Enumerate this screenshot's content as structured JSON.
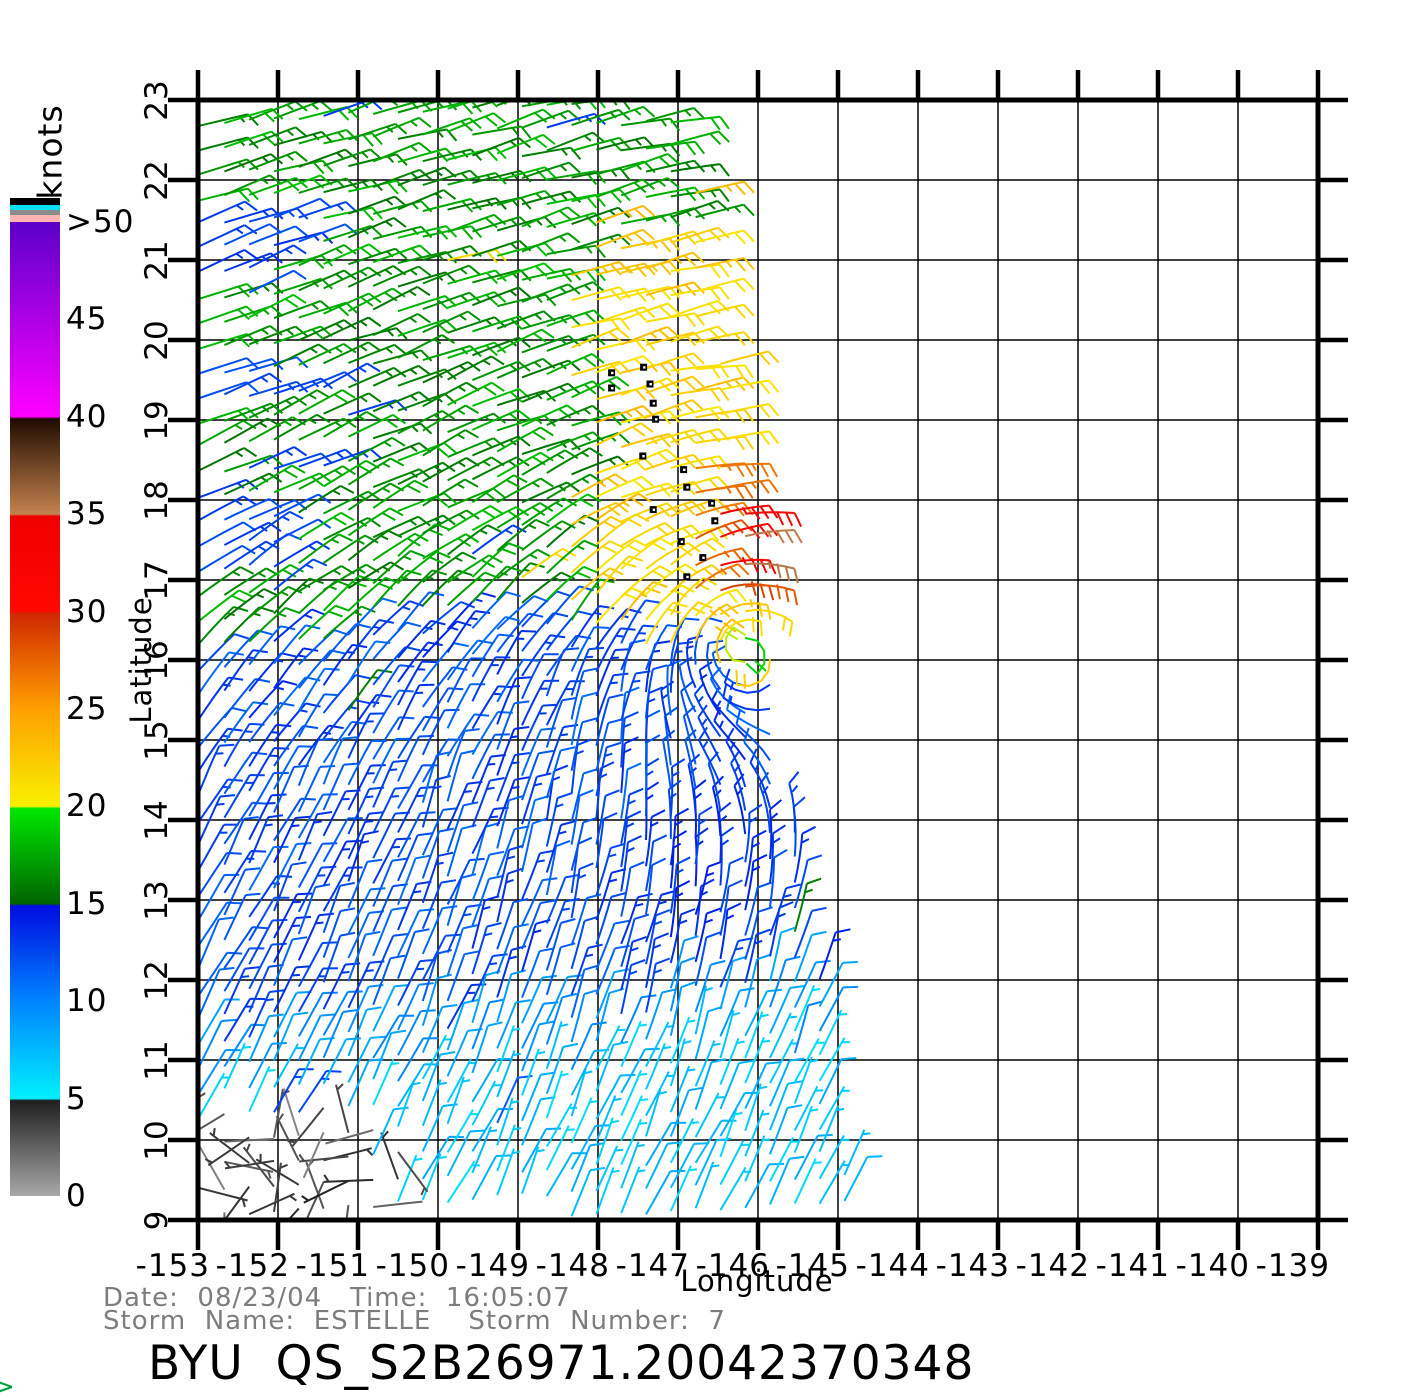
{
  "annotations": {
    "date_line": "Date:  08/23/04   Time:  16:05:07",
    "storm_line": "Storm  Name:  ESTELLE    Storm  Number:  7",
    "title": "BYU  QS_S2B26971.20042370348",
    "corner_glyph": ">"
  },
  "colorbar": {
    "title": "knots",
    "stops": [
      [
        0,
        "#a8a8a8"
      ],
      [
        4.9,
        "#1f1f1f"
      ],
      [
        5,
        "#00f0ff"
      ],
      [
        10,
        "#0084ff"
      ],
      [
        14.9,
        "#000ce0"
      ],
      [
        15,
        "#006400"
      ],
      [
        19.9,
        "#00e800"
      ],
      [
        20,
        "#f8f000"
      ],
      [
        25,
        "#ffa000"
      ],
      [
        29.9,
        "#d02800"
      ],
      [
        30,
        "#ff0800"
      ],
      [
        34.9,
        "#f00000"
      ],
      [
        35,
        "#c4824e"
      ],
      [
        39.9,
        "#200c00"
      ],
      [
        40,
        "#ff00ff"
      ],
      [
        50,
        "#5c00c8"
      ]
    ],
    "top_strips": [
      {
        "color": "#ffb4b4",
        "h": 7
      },
      {
        "color": "#8c8c8c",
        "h": 5
      },
      {
        "color": "#00e0f0",
        "h": 5
      },
      {
        "color": "#000000",
        "h": 7
      }
    ],
    "labels": [
      {
        "v": 0,
        "t": "0"
      },
      {
        "v": 5,
        "t": "5"
      },
      {
        "v": 10,
        "t": "10"
      },
      {
        "v": 15,
        "t": "15"
      },
      {
        "v": 20,
        "t": "20"
      },
      {
        "v": 25,
        "t": "25"
      },
      {
        "v": 30,
        "t": "30"
      },
      {
        "v": 35,
        "t": "35"
      },
      {
        "v": 40,
        "t": "40"
      },
      {
        "v": 45,
        "t": "45"
      },
      {
        "v": 50,
        "t": ">50"
      }
    ],
    "vmin": 0,
    "vmax": 50
  },
  "plot": {
    "xlabel": "Longitude",
    "ylabel": "Latitude",
    "lon_min": -153,
    "lon_max": -139,
    "lat_min": 9,
    "lat_max": 23,
    "x_tick_labels": [
      "-153",
      "-152",
      "-151",
      "-150",
      "-149",
      "-148",
      "-147",
      "-146",
      "-145",
      "-144",
      "-143",
      "-142",
      "-141",
      "-140",
      "-139"
    ],
    "y_tick_labels": [
      "23",
      "22",
      "21",
      "20",
      "19",
      "18",
      "17",
      "16",
      "15",
      "14",
      "13",
      "12",
      "11",
      "10",
      "9"
    ],
    "grid_color": "#000000",
    "frame_color": "#000000"
  },
  "chart_data": {
    "type": "wind_barb_map",
    "title": "BYU  QS_S2B26971.20042370348",
    "units": "knots",
    "xlabel": "Longitude",
    "ylabel": "Latitude",
    "xlim": [
      -153,
      -139
    ],
    "ylim": [
      9,
      23
    ],
    "grid": true,
    "colorbar_range_knots": [
      0,
      50
    ],
    "storm": {
      "name": "ESTELLE",
      "number": 7,
      "date": "08/23/04",
      "time": "16:05:07",
      "center_lon": -146.2,
      "center_lat": 16.2
    },
    "model": {
      "center": [
        -146.2,
        16.2
      ],
      "grid_step_deg": 0.31,
      "staff_len_deg": 0.62,
      "row_tilt_deg_per_deg": 0.06,
      "swath_edge_lon_at_lat9": -144.75,
      "swath_edge_slope_deg_per_deg": 0.1557,
      "vortex_gain": 1.6,
      "vortex_rmin": 0.45,
      "vortex_wmax": 2.2,
      "trades_from_south": [
        0.62,
        0.78
      ],
      "trades_from_north": [
        0.97,
        0.24
      ],
      "trades_lat_lo": 14.5,
      "trades_lat_span": 3.5,
      "green_blue_boundary": {
        "base": 16.35,
        "slope": 0.05,
        "dip_amp": 0.75,
        "dip_width": 1.2
      },
      "yellow_boundary_lon": -148.35,
      "yellow_top_lat": 21.4,
      "cyan_boundary": {
        "base": 10.4,
        "slope": 0.125
      },
      "gray_zone": {
        "lon_max": -150.62,
        "lat_max": 10.22
      },
      "speeds_knots": {
        "gray_calm": [
          1,
          4.8
        ],
        "cyan": [
          5.8,
          8.4
        ],
        "transition": [
          8,
          10
        ],
        "blue": [
          10.8,
          13.8
        ],
        "blue_east": [
          12,
          14.4
        ],
        "green": [
          15.5,
          18.5
        ],
        "yellow": [
          20.5,
          23.5
        ],
        "orange": [
          26,
          29
        ],
        "brown_core": [
          31,
          36
        ],
        "eye": [
          19,
          23
        ],
        "blue_patch": [
          12,
          13.5
        ]
      },
      "blue_patches": [
        [
          -153,
          -151.5,
          21.05,
          21.55
        ],
        [
          -153,
          -152.05,
          20.55,
          20.95
        ],
        [
          -153,
          -151.35,
          19.25,
          19.65
        ],
        [
          -152.55,
          -151.2,
          18.2,
          18.6
        ],
        [
          -153,
          -151.95,
          16.85,
          18.05
        ],
        [
          -152.2,
          -151.15,
          10.15,
          10.45
        ]
      ],
      "orange_zone": {
        "lon_min": -146.8,
        "lat_min": 16.85,
        "lat_max": 18.45
      },
      "brown_core_center": [
        -146.15,
        17.55
      ],
      "brown_core_radius": 0.5
    },
    "storm_track_markers": [
      [
        -147.83,
        19.59
      ],
      [
        -147.43,
        19.66
      ],
      [
        -147.83,
        19.4
      ],
      [
        -147.35,
        19.45
      ],
      [
        -147.31,
        19.21
      ],
      [
        -147.28,
        19.01
      ],
      [
        -147.44,
        18.55
      ],
      [
        -146.93,
        18.38
      ],
      [
        -146.89,
        18.16
      ],
      [
        -146.58,
        17.96
      ],
      [
        -147.31,
        17.88
      ],
      [
        -146.54,
        17.74
      ],
      [
        -146.96,
        17.48
      ],
      [
        -146.69,
        17.28
      ],
      [
        -146.89,
        17.04
      ]
    ],
    "marker_color": "#000000"
  }
}
